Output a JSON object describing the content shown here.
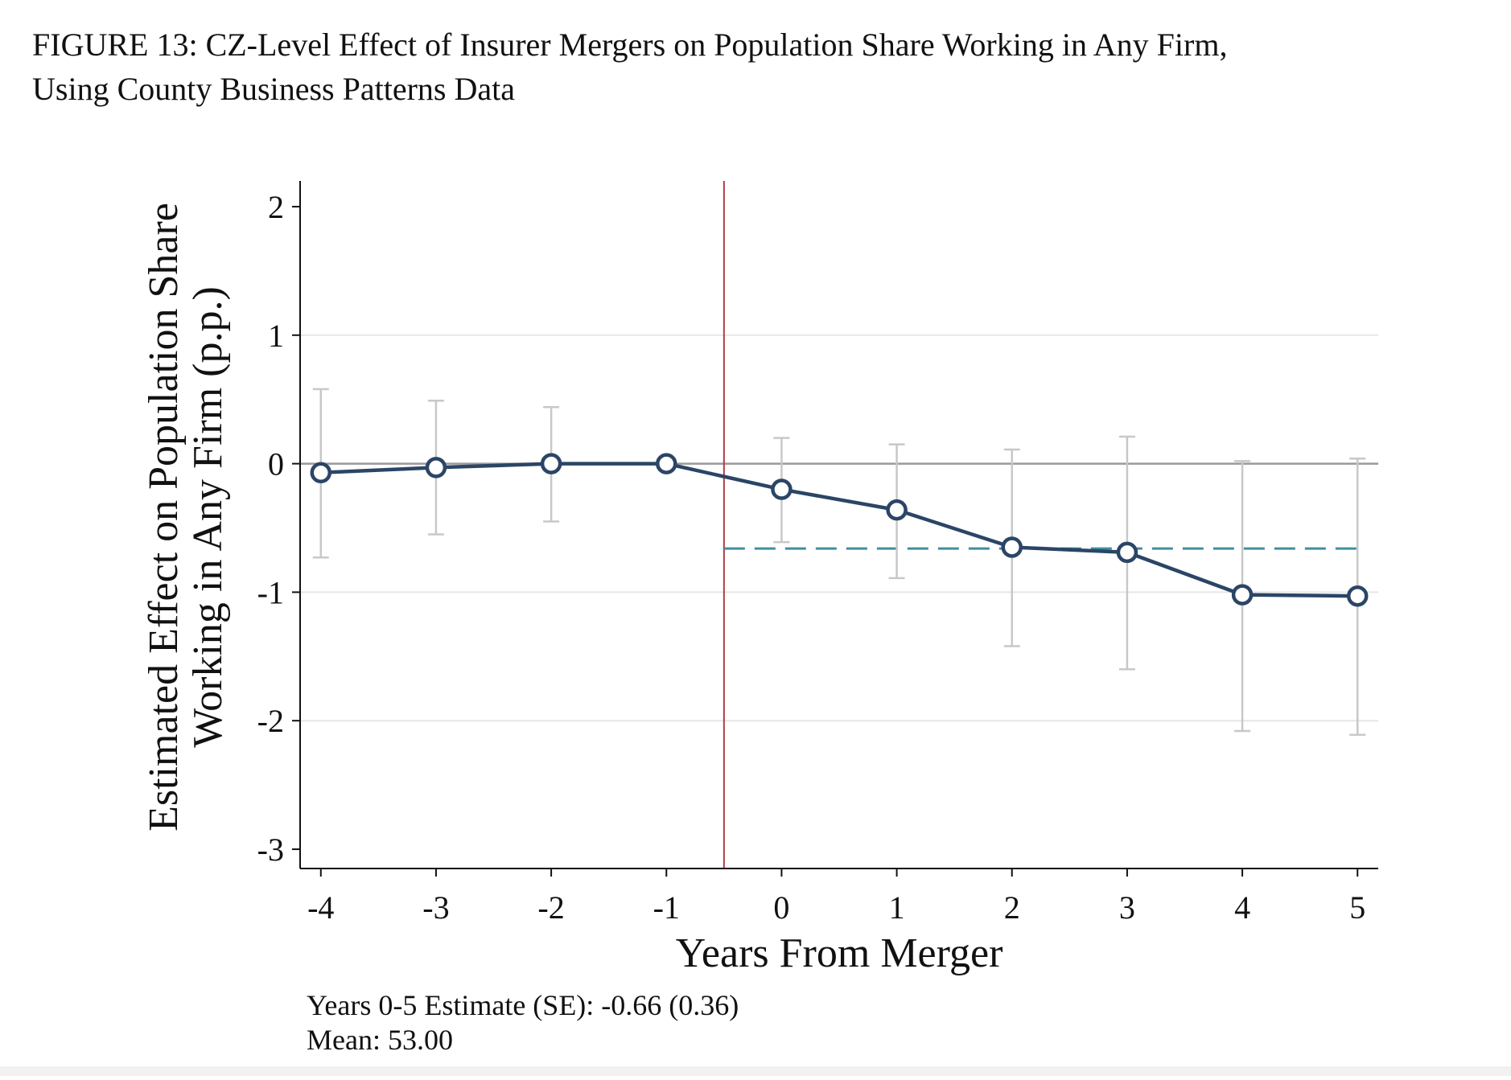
{
  "figure": {
    "caption_line1": "FIGURE 13: CZ-Level Effect of Insurer Mergers on Population Share Working in Any Firm,",
    "caption_line2": "Using County Business Patterns Data"
  },
  "chart_data": {
    "type": "line",
    "title": "",
    "xlabel": "Years From Merger",
    "ylabel_line1": "Estimated Effect on Population Share",
    "ylabel_line2": "Working in Any Firm (p.p.)",
    "x": [
      -4,
      -3,
      -2,
      -1,
      0,
      1,
      2,
      3,
      4,
      5
    ],
    "x_tick_labels": [
      "-4",
      "-3",
      "-2",
      "-1",
      "0",
      "1",
      "2",
      "3",
      "4",
      "5"
    ],
    "xlim": [
      -4.18,
      5.18
    ],
    "y_ticks": [
      2,
      1,
      0,
      -1,
      -2,
      -3
    ],
    "y_tick_labels": [
      "2",
      "1",
      "0",
      "-1",
      "-2",
      "-3"
    ],
    "ylim": [
      -3.15,
      2.2
    ],
    "series": [
      {
        "values": [
          -0.07,
          -0.03,
          0.0,
          0.0,
          -0.2,
          -0.36,
          -0.65,
          -0.69,
          -1.02,
          -1.03
        ],
        "ci_low": [
          -0.73,
          -0.55,
          -0.45,
          0.0,
          -0.61,
          -0.89,
          -1.42,
          -1.6,
          -2.08,
          -2.11
        ],
        "ci_high": [
          0.58,
          0.49,
          0.44,
          0.0,
          0.2,
          0.15,
          0.11,
          0.21,
          0.02,
          0.04
        ],
        "color": "#2b4566"
      }
    ],
    "event_line_x": -0.5,
    "event_line_color": "#b23a48",
    "zero_line_y": 0,
    "average_effect": {
      "value": -0.66,
      "x_from": -0.5,
      "x_to": 5,
      "color": "#3f8fa0"
    },
    "grid": true,
    "grid_y": [
      1,
      -1,
      -2
    ],
    "ci_color": "#c8c8c8",
    "annotations": [
      "Years 0-5 Estimate (SE): -0.66 (0.36)",
      "Mean: 53.00"
    ]
  }
}
